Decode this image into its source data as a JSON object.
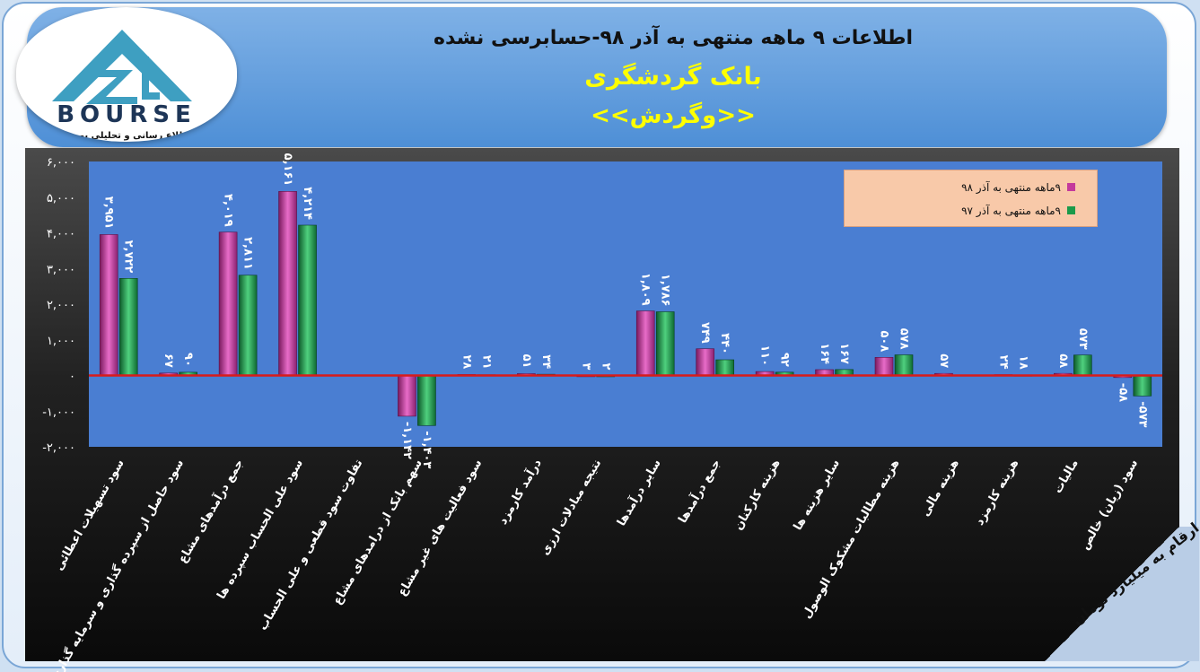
{
  "header": {
    "title": "اطلاعات ۹ ماهه منتهی به آذر ۹۸-حسابرسی نشده",
    "company": "بانک گردشگری",
    "symbol": "<<وگردش>>"
  },
  "logo": {
    "text": "BOURSE",
    "subtext": "پایگاه اطلاع رسانی و تحلیلی بورس ایران"
  },
  "unit_note": "ارقام به میلیارد تومان",
  "chart_data": {
    "type": "bar",
    "categories": [
      "سود تسهیلات اعطائی",
      "سود حاصل از سپرده گذاری و سرمایه گذاری",
      "جمع درآمدهای مشاع",
      "سود علی الحساب سپرده ها",
      "تفاوت سود قطعی و علی الحساب",
      "سهم بانک از درامدهای مشاع",
      "سود فعالیت های غیر مشاع",
      "درآمد کارمزد",
      "نتیجه مبادلات ارزی",
      "سایر درآمدها",
      "جمع درآمدها",
      "هزینه کارکنان",
      "سایر هزینه ها",
      "هزینه مطالبات مشکوک الوصول",
      "هزینه مالی",
      "هزینه کارمزد",
      "مالیات",
      "سود (زیان) خالص"
    ],
    "series": [
      {
        "name": "۹ماهه منتهی به آذر ۹۸",
        "color": "#c4399c",
        "values": [
          3951,
          67,
          4019,
          5161,
          null,
          -1142,
          28,
          51,
          3,
          1809,
          749,
          110,
          164,
          508,
          57,
          24,
          58,
          -58
        ],
        "labels": [
          "۳,۹۵۱",
          "۶۷",
          "۴,۰۱۹",
          "۵,۱۶۱",
          "",
          "-۱,۱۴۲",
          "۲۸",
          "۵۱",
          "۳",
          "۱,۸۰۹",
          "۷۴۹",
          "۱۱۰",
          "۱۶۴",
          "۵۰۸",
          "۵۷",
          "۲۴",
          "۵۸",
          "-۵۸"
        ]
      },
      {
        "name": "۹ماهه منتهی به آذر ۹۷",
        "color": "#1a9a4a",
        "values": [
          2722,
          90,
          2811,
          4214,
          null,
          -1403,
          21,
          34,
          2,
          1786,
          440,
          92,
          167,
          578,
          null,
          18,
          573,
          -573
        ],
        "labels": [
          "۲,۷۲۲",
          "۹۰",
          "۲,۸۱۱",
          "۴,۲۱۴",
          "",
          "-۱,۴۰۳",
          "۲۱",
          "۳۴",
          "۲",
          "۱,۷۸۶",
          "۴۴۰",
          "۹۲",
          "۱۶۷",
          "۵۷۸",
          "",
          "۱۸",
          "۵۷۳",
          "-۵۷۳"
        ]
      }
    ],
    "ylim": [
      -2000,
      6000
    ],
    "yticks": [
      -2000,
      -1000,
      0,
      1000,
      2000,
      3000,
      4000,
      5000,
      6000
    ],
    "ytick_labels": [
      "-۲,۰۰۰",
      "-۱,۰۰۰",
      "۰",
      "۱,۰۰۰",
      "۲,۰۰۰",
      "۳,۰۰۰",
      "۴,۰۰۰",
      "۵,۰۰۰",
      "۶,۰۰۰"
    ],
    "legend_position": "top-right",
    "zero_line_color": "#d81b1b",
    "plot_bg": "#4a7ed2"
  }
}
